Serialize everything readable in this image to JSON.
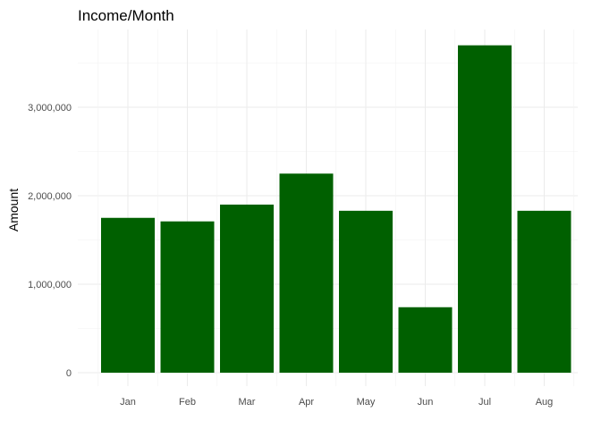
{
  "chart_data": {
    "type": "bar",
    "title": "Income/Month",
    "xlabel": "",
    "ylabel": "Amount",
    "categories": [
      "Jan",
      "Feb",
      "Mar",
      "Apr",
      "May",
      "Jun",
      "Jul",
      "Aug"
    ],
    "values": [
      1750000,
      1710000,
      1900000,
      2250000,
      1830000,
      740000,
      3700000,
      1830000
    ],
    "ylim": [
      0,
      3750000
    ],
    "yticks": [
      0,
      1000000,
      2000000,
      3000000
    ],
    "ytick_labels": [
      "0",
      "1,000,000",
      "2,000,000",
      "3,000,000"
    ],
    "grid": true,
    "bar_color": "#006000"
  }
}
